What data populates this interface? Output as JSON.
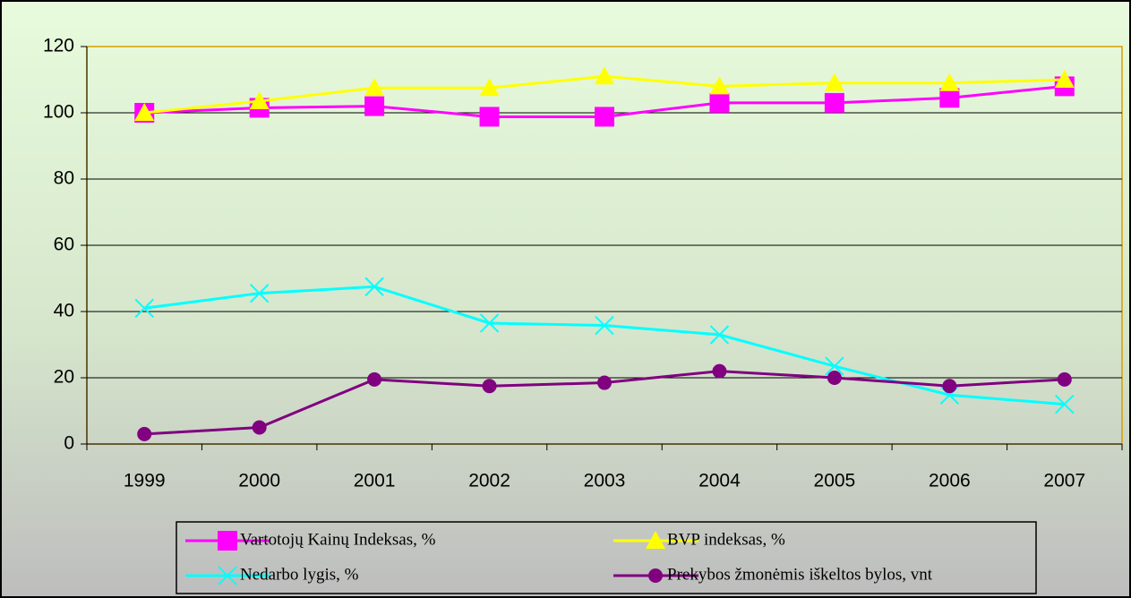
{
  "chart_data": {
    "type": "line",
    "categories": [
      "1999",
      "2000",
      "2001",
      "2002",
      "2003",
      "2004",
      "2005",
      "2006",
      "2007"
    ],
    "series": [
      {
        "name": "Vartotojų Kainų Indeksas, %",
        "color": "#ff00ff",
        "marker": "square",
        "values": [
          100,
          101.5,
          102,
          98.8,
          98.8,
          103,
          103,
          104.5,
          108
        ]
      },
      {
        "name": "BVP indeksas, %",
        "color": "#ffff00",
        "marker": "triangle",
        "values": [
          100,
          103.5,
          107.5,
          107.5,
          111,
          108,
          109,
          109,
          110
        ]
      },
      {
        "name": "Nedarbo lygis, %",
        "color": "#00ffff",
        "marker": "x",
        "values": [
          41,
          45.5,
          47.5,
          36.5,
          35.8,
          33,
          23.5,
          14.8,
          12
        ]
      },
      {
        "name": "Prekybos žmonėmis iškeltos bylos, vnt",
        "color": "#800080",
        "marker": "circle",
        "values": [
          3,
          5,
          19.5,
          17.5,
          18.5,
          22,
          20,
          17.5,
          19.5
        ]
      }
    ],
    "ylim": [
      0,
      120
    ],
    "yticks": [
      0,
      20,
      40,
      60,
      80,
      100,
      120
    ],
    "grid": true
  }
}
